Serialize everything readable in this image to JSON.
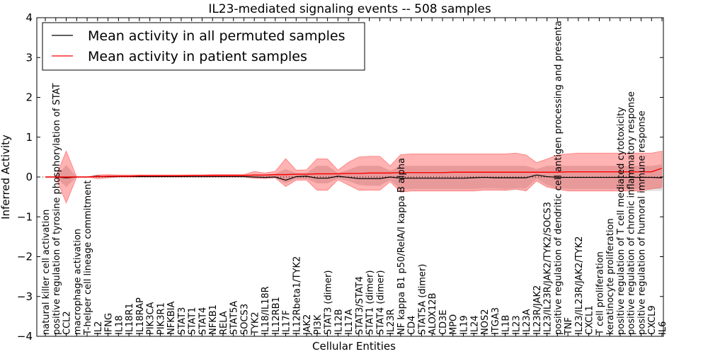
{
  "chart_data": {
    "type": "line",
    "title": "IL23-mediated signaling events -- 508 samples",
    "xlabel": "Cellular Entities",
    "ylabel": "Inferred Activity",
    "ylim": [
      -4,
      4
    ],
    "yticks": [
      4,
      3,
      2,
      1,
      0,
      -1,
      -2,
      -3,
      -4
    ],
    "ytick_labels": [
      "4",
      "3",
      "2",
      "1",
      "0",
      "−1",
      "−2",
      "−3",
      "−4"
    ],
    "legend": {
      "placement": "top-left",
      "entries": [
        {
          "label": "Mean activity in all permuted samples",
          "color": "#000000"
        },
        {
          "label": "Mean activity in patient samples",
          "color": "#ff0000"
        }
      ]
    },
    "categories": [
      "natural killer cell activation",
      "positive regulation of tyrosine phosphorylation of STAT",
      "CCL2",
      "macrophage activation",
      "T-helper cell lineage commitment",
      "IL2",
      "IFNG",
      "IL18",
      "IL18R1",
      "IL18RAP",
      "PIK3CA",
      "PIK3R1",
      "NFKBIA",
      "STAT3",
      "STAT1",
      "STAT4",
      "NFKB1",
      "RELA",
      "STAT5A",
      "SOCS3",
      "TYK2",
      "IL18/IL18R",
      "IL12RB1",
      "IL17F",
      "IL12Rbeta1/TYK2",
      "JAK2",
      "PI3K",
      "STAT3 (dimer)",
      "IL12B",
      "IL17A",
      "STAT3/STAT4",
      "STAT1 (dimer)",
      "STAT4 (dimer)",
      "IL23R",
      "NF kappa B1 p50/RelA/I kappa B alpha",
      "CD4",
      "STAT5A (dimer)",
      "ALOX12B",
      "CD3E",
      "MPO",
      "IL19",
      "IL24",
      "NOS2",
      "ITGA3",
      "IL1B",
      "IL23",
      "IL23A",
      "IL23R/JAK2",
      "IL23/IL23R/JAK2/TYK2/SOCS3",
      "positive regulation of dendritic cell antigen processing and presenta",
      "TNF",
      "IL23/IL23R/JAK2/TYK2",
      "CXCL1",
      "T cell proliferation",
      "keratinocyte proliferation",
      "positive regulation of T cell mediated cytotoxicity",
      "positive regulation of chronic inflammatory response",
      "positive regulation of humoral immune response",
      "CXCL9",
      "IL6"
    ],
    "series": [
      {
        "name": "Mean activity in all permuted samples",
        "color": "#000000",
        "values": [
          0,
          0,
          -0.02,
          0,
          0,
          0.02,
          0.01,
          0.01,
          0.01,
          0.01,
          0.01,
          0.01,
          0.01,
          0.01,
          0.01,
          0.01,
          0.01,
          0.01,
          0.01,
          0.01,
          0,
          -0.01,
          0,
          -0.08,
          0.01,
          0.02,
          -0.03,
          -0.03,
          0.02,
          -0.01,
          -0.04,
          -0.04,
          -0.04,
          0,
          -0.03,
          -0.03,
          -0.03,
          -0.03,
          -0.03,
          -0.03,
          -0.03,
          -0.02,
          -0.01,
          -0.02,
          -0.02,
          -0.02,
          -0.02,
          0.05,
          0.01,
          -0.01,
          -0.01,
          -0.01,
          -0.01,
          -0.01,
          -0.01,
          -0.01,
          -0.01,
          -0.01,
          -0.01,
          -0.02
        ],
        "band_inner": [
          [
            0,
            0
          ],
          [
            0,
            0
          ],
          [
            -0.25,
            0.3
          ],
          [
            0,
            0
          ],
          [
            0,
            0
          ],
          [
            -0.02,
            0.04
          ],
          [
            -0.01,
            0.03
          ],
          [
            0,
            0.02
          ],
          [
            0,
            0.02
          ],
          [
            0,
            0.02
          ],
          [
            0,
            0.02
          ],
          [
            0,
            0.02
          ],
          [
            0,
            0.02
          ],
          [
            0,
            0.02
          ],
          [
            0,
            0.02
          ],
          [
            0,
            0.02
          ],
          [
            0,
            0.02
          ],
          [
            0,
            0.02
          ],
          [
            0,
            0.02
          ],
          [
            0,
            0.02
          ],
          [
            -0.02,
            0.06
          ],
          [
            -0.03,
            0.06
          ],
          [
            -0.02,
            0.08
          ],
          [
            -0.16,
            0.2
          ],
          [
            -0.05,
            0.1
          ],
          [
            -0.05,
            0.1
          ],
          [
            -0.16,
            0.28
          ],
          [
            -0.16,
            0.28
          ],
          [
            -0.04,
            0.1
          ],
          [
            -0.1,
            0.18
          ],
          [
            -0.2,
            0.28
          ],
          [
            -0.22,
            0.28
          ],
          [
            -0.22,
            0.28
          ],
          [
            -0.08,
            0.16
          ],
          [
            -0.3,
            0.28
          ],
          [
            -0.3,
            0.28
          ],
          [
            -0.3,
            0.28
          ],
          [
            -0.3,
            0.28
          ],
          [
            -0.3,
            0.28
          ],
          [
            -0.3,
            0.28
          ],
          [
            -0.3,
            0.28
          ],
          [
            -0.3,
            0.28
          ],
          [
            -0.28,
            0.28
          ],
          [
            -0.28,
            0.28
          ],
          [
            -0.3,
            0.28
          ],
          [
            -0.28,
            0.28
          ],
          [
            -0.28,
            0.28
          ],
          [
            -0.04,
            0.2
          ],
          [
            -0.2,
            0.28
          ],
          [
            -0.28,
            0.28
          ],
          [
            -0.3,
            0.28
          ],
          [
            -0.3,
            0.28
          ],
          [
            -0.3,
            0.28
          ],
          [
            -0.3,
            0.28
          ],
          [
            -0.3,
            0.28
          ],
          [
            -0.3,
            0.28
          ],
          [
            -0.3,
            0.28
          ],
          [
            -0.3,
            0.28
          ],
          [
            -0.3,
            0.28
          ],
          [
            -0.3,
            0.32
          ]
        ]
      },
      {
        "name": "Mean activity in patient samples",
        "color": "#ff0000",
        "values": [
          0,
          0,
          0,
          0,
          0,
          0.01,
          0.02,
          0.02,
          0.02,
          0.03,
          0.03,
          0.03,
          0.03,
          0.03,
          0.04,
          0.04,
          0.04,
          0.04,
          0.04,
          0.04,
          0.05,
          0.05,
          0.06,
          0.06,
          0.07,
          0.07,
          0.08,
          0.08,
          0.08,
          0.09,
          0.09,
          0.1,
          0.1,
          0.1,
          0.11,
          0.11,
          0.11,
          0.11,
          0.11,
          0.12,
          0.12,
          0.12,
          0.12,
          0.12,
          0.12,
          0.12,
          0.12,
          0.12,
          0.12,
          0.12,
          0.13,
          0.13,
          0.13,
          0.13,
          0.13,
          0.13,
          0.13,
          0.13,
          0.13,
          0.22
        ],
        "band_outer": [
          [
            0,
            0
          ],
          [
            0,
            0
          ],
          [
            -0.65,
            0.65
          ],
          [
            0,
            0
          ],
          [
            0,
            0
          ],
          [
            -0.04,
            0.05
          ],
          [
            -0.02,
            0.06
          ],
          [
            0,
            0.05
          ],
          [
            0,
            0.05
          ],
          [
            0,
            0.05
          ],
          [
            0,
            0.05
          ],
          [
            0,
            0.05
          ],
          [
            0,
            0.05
          ],
          [
            0,
            0.05
          ],
          [
            0,
            0.05
          ],
          [
            0,
            0.05
          ],
          [
            0,
            0.06
          ],
          [
            0,
            0.06
          ],
          [
            0,
            0.06
          ],
          [
            0,
            0.06
          ],
          [
            -0.03,
            0.14
          ],
          [
            -0.04,
            0.1
          ],
          [
            -0.02,
            0.14
          ],
          [
            -0.24,
            0.46
          ],
          [
            -0.08,
            0.17
          ],
          [
            -0.08,
            0.18
          ],
          [
            -0.33,
            0.46
          ],
          [
            -0.33,
            0.45
          ],
          [
            -0.07,
            0.17
          ],
          [
            -0.2,
            0.37
          ],
          [
            -0.33,
            0.5
          ],
          [
            -0.33,
            0.52
          ],
          [
            -0.33,
            0.52
          ],
          [
            -0.12,
            0.28
          ],
          [
            -0.38,
            0.56
          ],
          [
            -0.35,
            0.58
          ],
          [
            -0.35,
            0.58
          ],
          [
            -0.35,
            0.58
          ],
          [
            -0.35,
            0.58
          ],
          [
            -0.35,
            0.58
          ],
          [
            -0.35,
            0.58
          ],
          [
            -0.35,
            0.58
          ],
          [
            -0.33,
            0.58
          ],
          [
            -0.33,
            0.58
          ],
          [
            -0.33,
            0.58
          ],
          [
            -0.3,
            0.6
          ],
          [
            -0.35,
            0.55
          ],
          [
            -0.1,
            0.36
          ],
          [
            -0.25,
            0.45
          ],
          [
            -0.3,
            0.55
          ],
          [
            -0.35,
            0.58
          ],
          [
            -0.35,
            0.6
          ],
          [
            -0.35,
            0.6
          ],
          [
            -0.35,
            0.6
          ],
          [
            -0.35,
            0.6
          ],
          [
            -0.35,
            0.6
          ],
          [
            -0.35,
            0.6
          ],
          [
            -0.35,
            0.6
          ],
          [
            -0.3,
            0.6
          ],
          [
            -0.25,
            0.65
          ]
        ]
      }
    ],
    "reference_line": {
      "y": 0,
      "style": "dotted"
    },
    "grid": false,
    "colors": {
      "patient_band": "#ff9999",
      "permuted_band": "#cccccc",
      "axis": "#000000"
    }
  }
}
